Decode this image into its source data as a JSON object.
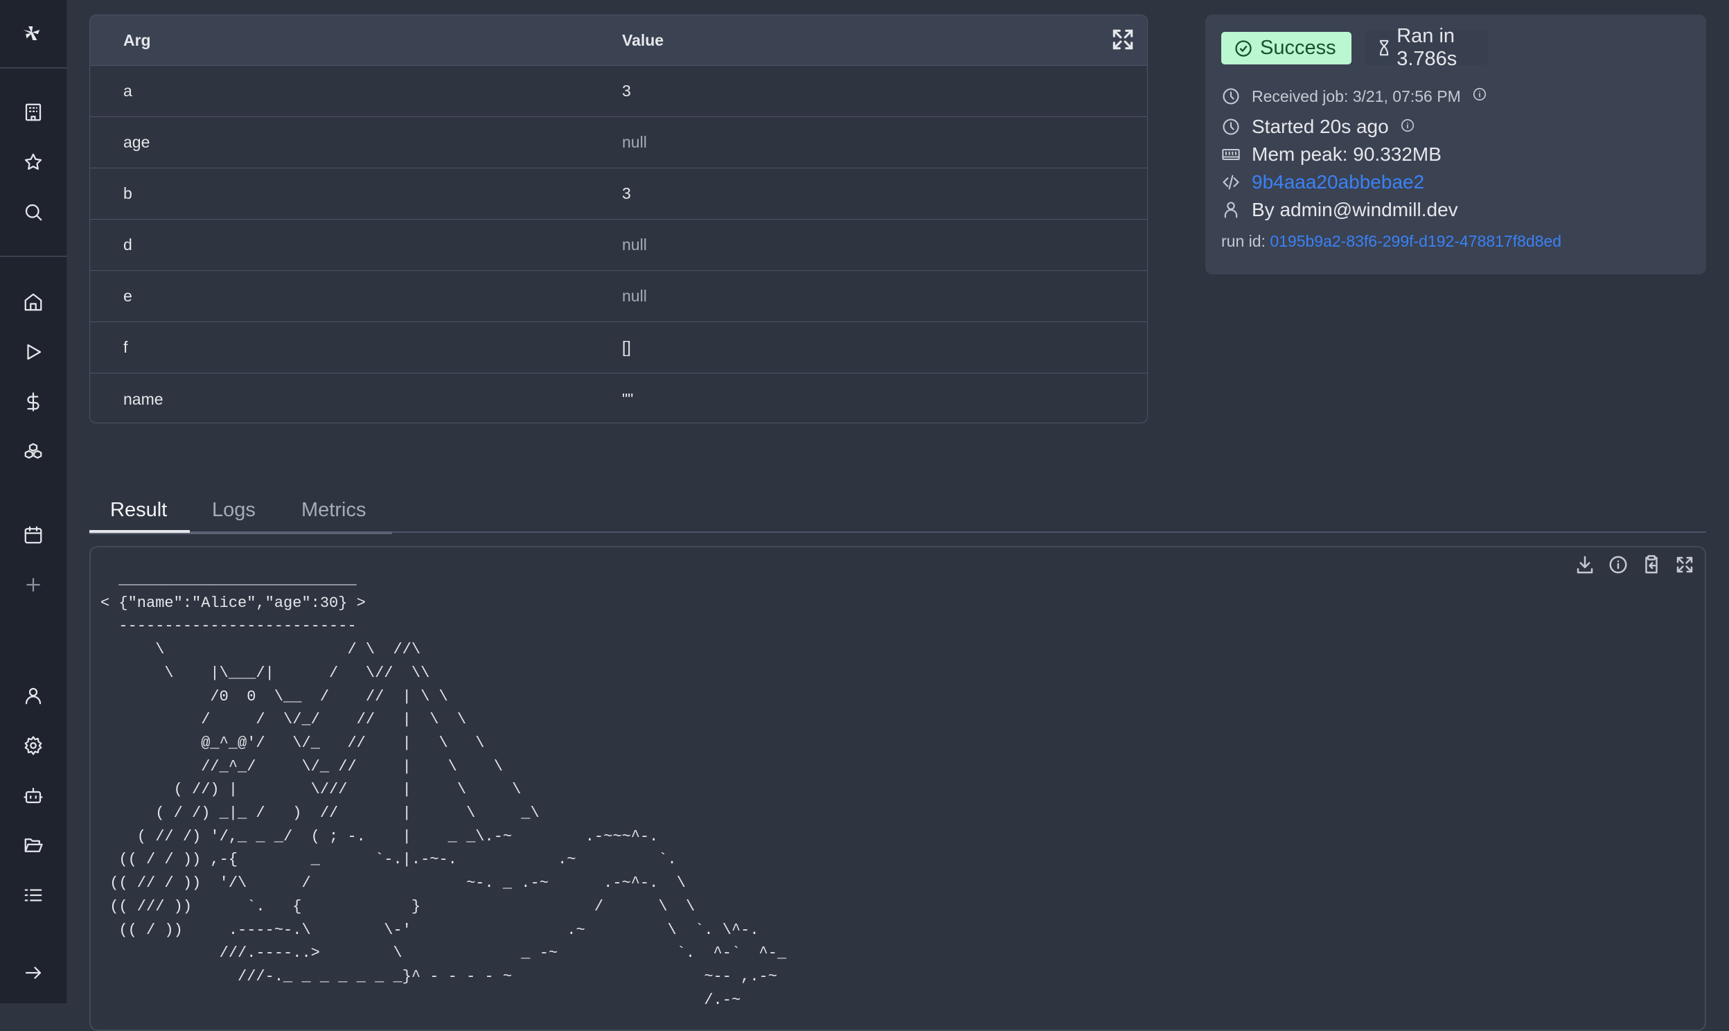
{
  "sidebar": {
    "items": [
      "logo",
      "apps",
      "favorites",
      "search",
      "home",
      "runs",
      "resources",
      "variables",
      "schedules",
      "add",
      "users",
      "settings",
      "ai",
      "folders",
      "list",
      "collapse"
    ]
  },
  "args_table": {
    "headers": {
      "arg": "Arg",
      "value": "Value"
    },
    "rows": [
      {
        "arg": "a",
        "value": "3"
      },
      {
        "arg": "age",
        "value": "null"
      },
      {
        "arg": "b",
        "value": "3"
      },
      {
        "arg": "d",
        "value": "null"
      },
      {
        "arg": "e",
        "value": "null"
      },
      {
        "arg": "f",
        "value": "[]"
      },
      {
        "arg": "name",
        "value": "\"\""
      }
    ]
  },
  "job": {
    "status": "Success",
    "status_color": "#bbf7d0",
    "duration": "Ran in 3.786s",
    "received": "Received job: 3/21, 07:56 PM",
    "started": "Started 20s ago",
    "mem_peak": "Mem peak: 90.332MB",
    "hash": "9b4aaa20abbebae2",
    "by": "By admin@windmill.dev",
    "run_id_label": "run id:",
    "run_id": "0195b9a2-83f6-299f-d192-478817f8d8ed"
  },
  "tabs": [
    {
      "label": "Result"
    },
    {
      "label": "Logs"
    },
    {
      "label": "Metrics"
    }
  ],
  "result": {
    "text": "  __________________________\n< {\"name\":\"Alice\",\"age\":30} >\n  --------------------------\n      \\                    / \\  //\\\n       \\    |\\___/|      /   \\//  \\\\\n            /0  0  \\__  /    //  | \\ \\\n           /     /  \\/_/    //   |  \\  \\\n           @_^_@'/   \\/_   //    |   \\   \\\n           //_^_/     \\/_ //     |    \\    \\\n        ( //) |        \\///      |     \\     \\\n      ( / /) _|_ /   )  //       |      \\     _\\\n    ( // /) '/,_ _ _/  ( ; -.    |    _ _\\.-~        .-~~~^-.\n  (( / / )) ,-{        _      `-.|.-~-.           .~         `.\n (( // / ))  '/\\      /                 ~-. _ .-~      .-~^-.  \\\n (( /// ))      `.   {            }                   /      \\  \\\n  (( / ))     .----~-.\\        \\-'                 .~         \\  `. \\^-.\n             ///.----..>        \\             _ -~             `.  ^-`  ^-_\n               ///-._ _ _ _ _ _ _}^ - - - - ~                     ~-- ,.-~\n                                                                  /.-~"
  }
}
